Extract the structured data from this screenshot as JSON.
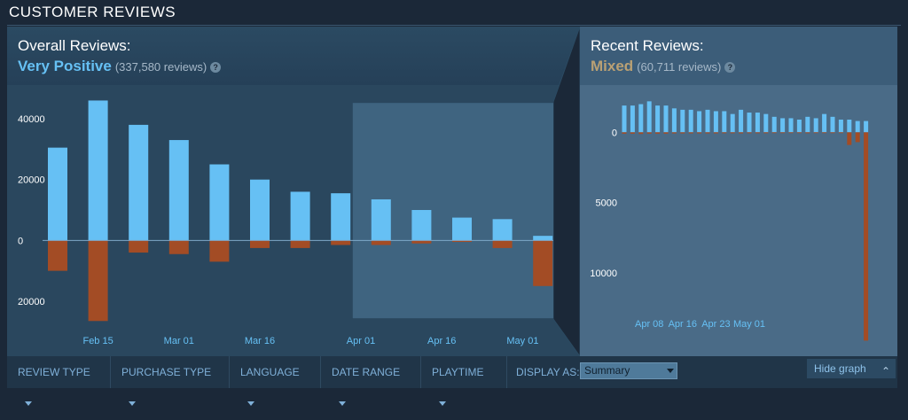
{
  "section": {
    "title": "CUSTOMER REVIEWS"
  },
  "overall": {
    "label": "Overall Reviews:",
    "summary": "Very Positive",
    "count": "(337,580 reviews)",
    "help": "?"
  },
  "recent": {
    "label": "Recent Reviews:",
    "summary": "Mixed",
    "count": "(60,711 reviews)",
    "help": "?"
  },
  "colors": {
    "positive": "#66c0f4",
    "negative": "#a34c25",
    "summary_positive": "#66c0f4",
    "summary_mixed": "#b9a074"
  },
  "filters": {
    "review_type": "REVIEW TYPE",
    "purchase_type": "PURCHASE TYPE",
    "language": "LANGUAGE",
    "date_range": "DATE RANGE",
    "playtime": "PLAYTIME",
    "display_as_label": "DISPLAY AS:",
    "display_as_value": "Summary",
    "hide_graph": "Hide graph"
  },
  "chart_data": [
    {
      "type": "bar",
      "name": "overall",
      "y_tick_labels": [
        "40000",
        "20000",
        "0",
        "20000"
      ],
      "y_tick_values": [
        40000,
        20000,
        0,
        -20000
      ],
      "ylim": [
        -27000,
        47000
      ],
      "x_tick_labels": [
        "Feb 15",
        "Mar 01",
        "Mar 16",
        "Apr 01",
        "Apr 16",
        "May 01"
      ],
      "x_tick_positions": [
        1,
        3,
        5,
        7.5,
        9.5,
        11.5
      ],
      "positive": [
        30500,
        46000,
        38000,
        33000,
        25000,
        20000,
        16000,
        15500,
        13500,
        10000,
        7500,
        7000,
        1500
      ],
      "negative": [
        10000,
        26500,
        4000,
        4500,
        7000,
        2500,
        2500,
        1500,
        1500,
        1000,
        500,
        2500,
        15000
      ],
      "highlight_range": [
        8,
        12
      ]
    },
    {
      "type": "bar",
      "name": "recent",
      "y_tick_labels": [
        "0",
        "5000",
        "10000"
      ],
      "y_tick_values": [
        0,
        -5000,
        -10000
      ],
      "ylim": [
        -14900,
        2600
      ],
      "x_tick_labels": [
        "Apr 08",
        "Apr 16",
        "Apr 23",
        "May 01"
      ],
      "x_tick_positions": [
        3,
        7,
        11,
        15
      ],
      "positive": [
        1900,
        1900,
        2000,
        2200,
        1900,
        1900,
        1700,
        1600,
        1600,
        1500,
        1600,
        1500,
        1500,
        1300,
        1600,
        1400,
        1400,
        1300,
        1100,
        1000,
        1000,
        900,
        1100,
        1000,
        1300,
        1100,
        900,
        900,
        800,
        800
      ],
      "negative": [
        100,
        100,
        120,
        100,
        100,
        100,
        80,
        80,
        80,
        80,
        80,
        80,
        70,
        70,
        80,
        70,
        70,
        70,
        60,
        60,
        60,
        60,
        70,
        60,
        60,
        60,
        60,
        900,
        700,
        14800
      ]
    }
  ]
}
